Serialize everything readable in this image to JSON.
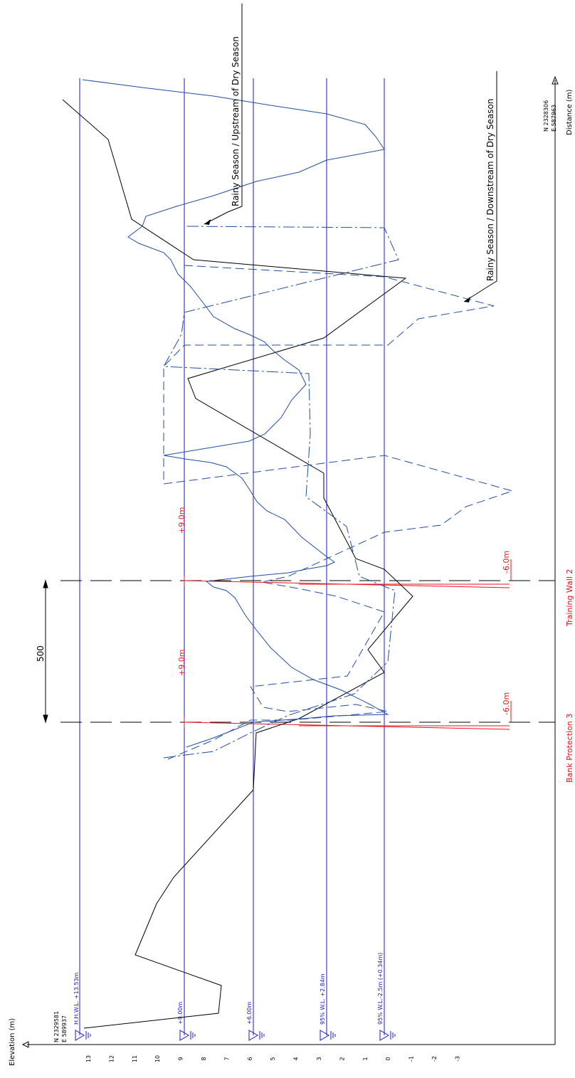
{
  "axes": {
    "elevation_label": "Elevation (m)",
    "distance_label": "Distance (m)",
    "elevation_ticks": [
      "13",
      "12",
      "11",
      "10",
      "9",
      "8",
      "7",
      "6",
      "5",
      "4",
      "3",
      "2",
      "1",
      "0",
      "-1",
      "-2",
      "-3"
    ]
  },
  "coordinates": {
    "start_north": "N 2329581",
    "start_east": "E 589937",
    "end_north": "N 2328306",
    "end_east": "E 587963"
  },
  "water_levels": [
    {
      "label": "H.H.W.L.  +13.53m",
      "elevation": 13.53
    },
    {
      "label": "+9.00m",
      "elevation": 9.0
    },
    {
      "label": "+6.00m",
      "elevation": 6.0
    },
    {
      "label": "95% W.L.  +2.84m",
      "elevation": 2.84
    },
    {
      "label": "95% W.L.-2.5m  (+0.34m)",
      "elevation": 0.34
    }
  ],
  "structures": {
    "bank_protection": {
      "name": "Bank Protection 3",
      "top": "+9.0m",
      "bottom": "-6.0m"
    },
    "training_wall": {
      "name": "Training Wall 2",
      "top": "+9.0m",
      "bottom": "-6.0m"
    },
    "spacing": "500"
  },
  "profiles": {
    "rainy_upstream": "Rainy Season / Upstream of Dry Season",
    "rainy_downstream": "Rainy Season / Downstream of Dry Season"
  },
  "colors": {
    "water_line": "#1a1acc",
    "structure": "#e8141b",
    "ground": "#000000",
    "profile": "#1f4fa8"
  }
}
